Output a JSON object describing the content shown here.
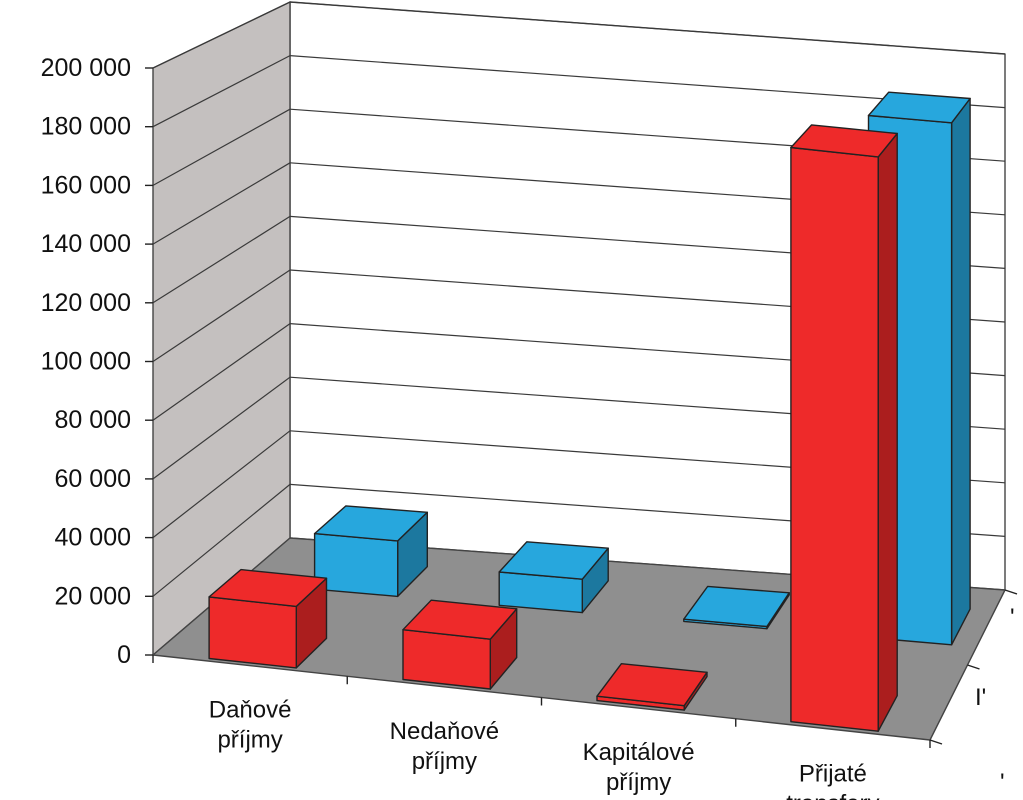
{
  "chart_data": {
    "type": "bar",
    "style": "3d-clustered-columns",
    "categories": [
      [
        "Daňové",
        "příjmy"
      ],
      [
        "Nedaňové",
        "příjmy"
      ],
      [
        "Kapitálové",
        "příjmy"
      ],
      [
        "Přijaté",
        "transfery"
      ]
    ],
    "y_ticks": [
      "0",
      "20 000",
      "40 000",
      "60 000",
      "80 000",
      "100 000",
      "120 000",
      "140 000",
      "160 000",
      "180 000",
      "200 000"
    ],
    "ylim": [
      0,
      200000
    ],
    "grid": true,
    "series": [
      {
        "color": "#ee2a2a",
        "values": [
          21000,
          17000,
          1500,
          196000
        ]
      },
      {
        "color": "#27a7dd",
        "values": [
          20000,
          12000,
          500,
          188000
        ]
      }
    ],
    "depth_axis_labels": [
      "'",
      "I'",
      "'"
    ],
    "title": "",
    "xlabel": "",
    "ylabel": ""
  },
  "colors": {
    "floor": "#8f8f8f",
    "back_wall": "#ffffff",
    "side_wall": "#c4c0bf",
    "grid": "#3a3a3a"
  }
}
